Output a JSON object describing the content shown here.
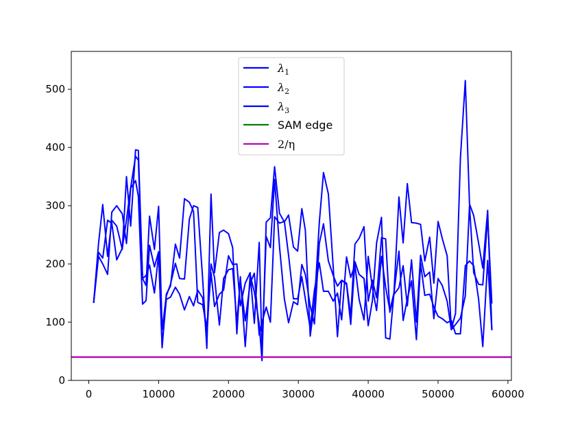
{
  "chart_data": {
    "type": "line",
    "title": "",
    "xlabel": "",
    "ylabel": "",
    "xlim": [
      -2500,
      60500
    ],
    "ylim": [
      0,
      565
    ],
    "xticks": [
      0,
      10000,
      20000,
      30000,
      40000,
      50000,
      60000
    ],
    "xtick_labels": [
      "0",
      "10000",
      "20000",
      "30000",
      "40000",
      "50000",
      "60000"
    ],
    "yticks": [
      0,
      100,
      200,
      300,
      400,
      500
    ],
    "ytick_labels": [
      "0",
      "100",
      "200",
      "300",
      "400",
      "500"
    ],
    "grid": false,
    "legend_position": "top-center",
    "series": [
      {
        "name": "λ1",
        "label_main": "λ",
        "label_sub": "1",
        "color": "#0000ff",
        "x": [
          700,
          1400,
          2000,
          2700,
          3300,
          4000,
          4800,
          5400,
          6000,
          6700,
          7100,
          7700,
          8200,
          8700,
          9400,
          10000,
          10500,
          11100,
          11700,
          12400,
          13000,
          13700,
          14400,
          15000,
          15600,
          16300,
          16900,
          17500,
          18000,
          18700,
          19300,
          20000,
          20600,
          21200,
          21700,
          22400,
          23100,
          23700,
          24400,
          24800,
          25400,
          26000,
          26600,
          27300,
          28000,
          28600,
          29300,
          29900,
          30500,
          31000,
          31700,
          32300,
          33000,
          33600,
          34300,
          35000,
          35600,
          36200,
          36900,
          37500,
          38100,
          38700,
          39400,
          40000,
          40600,
          41200,
          41900,
          42500,
          43100,
          43700,
          44400,
          45000,
          45600,
          46200,
          46900,
          47500,
          48100,
          48800,
          49400,
          50000,
          50600,
          51300,
          51900,
          52500,
          53200,
          53900,
          54500,
          55100,
          55800,
          56400,
          57100,
          57700
        ],
        "values": [
          133,
          235,
          302,
          213,
          275,
          265,
          225,
          350,
          265,
          396,
          395,
          175,
          163,
          282,
          225,
          299,
          87,
          145,
          165,
          201,
          175,
          174,
          277,
          300,
          297,
          175,
          55,
          320,
          185,
          254,
          258,
          252,
          228,
          80,
          178,
          58,
          181,
          152,
          97,
          34,
          272,
          279,
          367,
          287,
          272,
          284,
          229,
          222,
          295,
          258,
          76,
          132,
          271,
          357,
          320,
          193,
          75,
          172,
          165,
          96,
          204,
          182,
          175,
          94,
          137,
          236,
          280,
          73,
          71,
          152,
          315,
          236,
          338,
          271,
          270,
          268,
          205,
          246,
          167,
          273,
          244,
          214,
          88,
          115,
          382,
          515,
          303,
          283,
          236,
          193,
          292,
          87
        ]
      },
      {
        "name": "λ2",
        "label_main": "λ",
        "label_sub": "2",
        "color": "#0000ff",
        "x": [
          700,
          1400,
          2000,
          2700,
          3300,
          4000,
          4800,
          5400,
          6000,
          6700,
          7100,
          7700,
          8200,
          8700,
          9400,
          10000,
          10500,
          11100,
          11700,
          12400,
          13000,
          13700,
          14400,
          15000,
          15600,
          16300,
          16900,
          17500,
          18000,
          18700,
          19300,
          20000,
          20600,
          21200,
          21700,
          22400,
          23100,
          23700,
          24400,
          24800,
          25400,
          26000,
          26600,
          27300,
          28000,
          28600,
          29300,
          29900,
          30500,
          31000,
          31700,
          32300,
          33000,
          33600,
          34300,
          35000,
          35600,
          36200,
          36900,
          37500,
          38100,
          38700,
          39400,
          40000,
          40600,
          41200,
          41900,
          42500,
          43100,
          43700,
          44400,
          45000,
          45600,
          46200,
          46900,
          47500,
          48100,
          48800,
          49400,
          50000,
          50600,
          51300,
          51900,
          52500,
          53200,
          53900,
          54500,
          55100,
          55800,
          56400,
          57100,
          57700
        ],
        "values": [
          133,
          213,
          200,
          182,
          289,
          300,
          286,
          235,
          330,
          343,
          316,
          131,
          137,
          232,
          195,
          221,
          56,
          148,
          162,
          234,
          210,
          312,
          306,
          290,
          134,
          130,
          91,
          185,
          127,
          148,
          155,
          214,
          199,
          200,
          128,
          167,
          185,
          98,
          237,
          53,
          247,
          228,
          345,
          230,
          140,
          99,
          135,
          130,
          199,
          182,
          128,
          97,
          235,
          269,
          205,
          180,
          162,
          172,
          167,
          110,
          234,
          244,
          264,
          136,
          172,
          142,
          245,
          243,
          117,
          148,
          159,
          197,
          128,
          207,
          100,
          215,
          178,
          186,
          106,
          175,
          163,
          136,
          87,
          96,
          107,
          145,
          300,
          185,
          165,
          164,
          280,
          132
        ]
      },
      {
        "name": "λ3",
        "label_main": "λ",
        "label_sub": "3",
        "color": "#0000ff",
        "x": [
          700,
          1400,
          2000,
          2700,
          3300,
          4000,
          4800,
          5400,
          6000,
          6700,
          7100,
          7700,
          8200,
          8700,
          9400,
          10000,
          10500,
          11100,
          11700,
          12400,
          13000,
          13700,
          14400,
          15000,
          15600,
          16300,
          16900,
          17500,
          18000,
          18700,
          19300,
          20000,
          20600,
          21200,
          21700,
          22400,
          23100,
          23700,
          24400,
          24800,
          25400,
          26000,
          26600,
          27300,
          28000,
          28600,
          29300,
          29900,
          30500,
          31000,
          31700,
          32300,
          33000,
          33600,
          34300,
          35000,
          35600,
          36200,
          36900,
          37500,
          38100,
          38700,
          39400,
          40000,
          40600,
          41200,
          41900,
          42500,
          43100,
          43700,
          44400,
          45000,
          45600,
          46200,
          46900,
          47500,
          48100,
          48800,
          49400,
          50000,
          50600,
          51300,
          51900,
          52500,
          53200,
          53900,
          54500,
          55100,
          55800,
          56400,
          57100,
          57700
        ],
        "values": [
          133,
          220,
          210,
          275,
          270,
          207,
          227,
          276,
          331,
          385,
          378,
          175,
          180,
          198,
          150,
          217,
          60,
          139,
          143,
          160,
          148,
          121,
          144,
          128,
          155,
          142,
          75,
          200,
          177,
          95,
          175,
          190,
          192,
          100,
          172,
          102,
          167,
          184,
          78,
          100,
          126,
          100,
          281,
          270,
          273,
          215,
          140,
          140,
          178,
          140,
          90,
          155,
          202,
          153,
          153,
          136,
          150,
          104,
          212,
          177,
          198,
          139,
          104,
          213,
          159,
          120,
          213,
          160,
          120,
          151,
          222,
          103,
          140,
          171,
          70,
          201,
          146,
          148,
          126,
          110,
          106,
          99,
          103,
          80,
          80,
          197,
          205,
          197,
          140,
          58,
          206,
          86
        ]
      },
      {
        "name": "SAM edge",
        "color": "#008000",
        "x": [
          -2500,
          60500
        ],
        "values": [
          40,
          40
        ]
      },
      {
        "name": "2/η",
        "label_main": "2/η",
        "label_sub": "",
        "color": "#bf00bf",
        "x": [
          -2500,
          60500
        ],
        "values": [
          40,
          40
        ]
      }
    ]
  }
}
